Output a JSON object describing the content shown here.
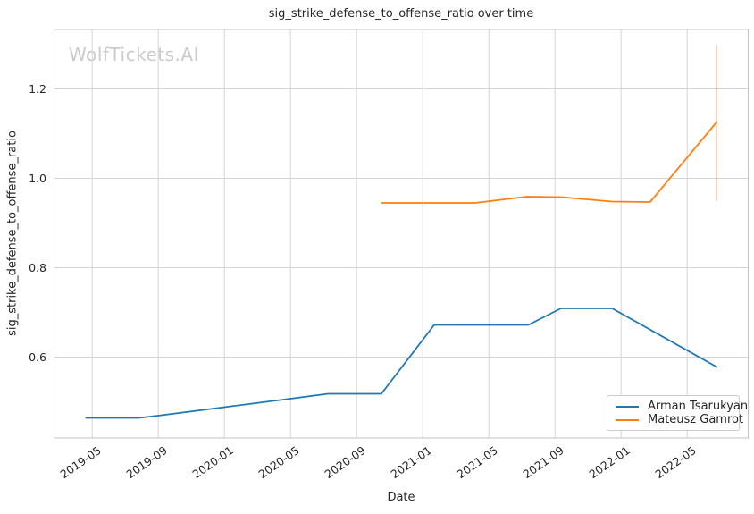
{
  "watermark": "WolfTickets.AI",
  "chart_data": {
    "type": "line",
    "title": "sig_strike_defense_to_offense_ratio over time",
    "xlabel": "Date",
    "ylabel": "sig_strike_defense_to_offense_ratio",
    "grid": true,
    "legend_position": "lower right",
    "x_ticks": [
      "2019-05",
      "2019-09",
      "2020-01",
      "2020-05",
      "2020-09",
      "2021-01",
      "2021-05",
      "2021-09",
      "2022-01",
      "2022-05"
    ],
    "y_ticks": [
      "0.6",
      "0.8",
      "1.0",
      "1.2"
    ],
    "x_range": [
      "2019-02-22",
      "2022-08-22"
    ],
    "y_range": [
      0.419,
      1.333
    ],
    "series": [
      {
        "name": "Arman Tsarukyan",
        "color": "#1f77b4",
        "points": [
          [
            "2019-04-20",
            0.464
          ],
          [
            "2019-07-26",
            0.464
          ],
          [
            "2019-09-07",
            0.47
          ],
          [
            "2020-01-01",
            0.488
          ],
          [
            "2020-05-01",
            0.507
          ],
          [
            "2020-07-09",
            0.518
          ],
          [
            "2020-10-16",
            0.518
          ],
          [
            "2021-01-22",
            0.672
          ],
          [
            "2021-05-01",
            0.672
          ],
          [
            "2021-07-13",
            0.672
          ],
          [
            "2021-09-12",
            0.709
          ],
          [
            "2021-12-15",
            0.709
          ],
          [
            "2022-06-25",
            0.578
          ]
        ]
      },
      {
        "name": "Mateusz Gamrot",
        "color": "#ff7f0e",
        "points": [
          [
            "2020-10-17",
            0.945
          ],
          [
            "2021-04-06",
            0.945
          ],
          [
            "2021-07-10",
            0.959
          ],
          [
            "2021-09-12",
            0.958
          ],
          [
            "2021-12-15",
            0.948
          ],
          [
            "2022-02-24",
            0.947
          ],
          [
            "2022-06-25",
            1.126
          ]
        ],
        "error_bar": {
          "x": "2022-06-25",
          "low": 0.949,
          "high": 1.299
        }
      }
    ],
    "style": {
      "grid_color": "#d4d4d4",
      "spine_color": "#c3c3c3",
      "error_bar_color": "rgba(255,127,14,0.35)",
      "line_width": 1.8
    }
  }
}
